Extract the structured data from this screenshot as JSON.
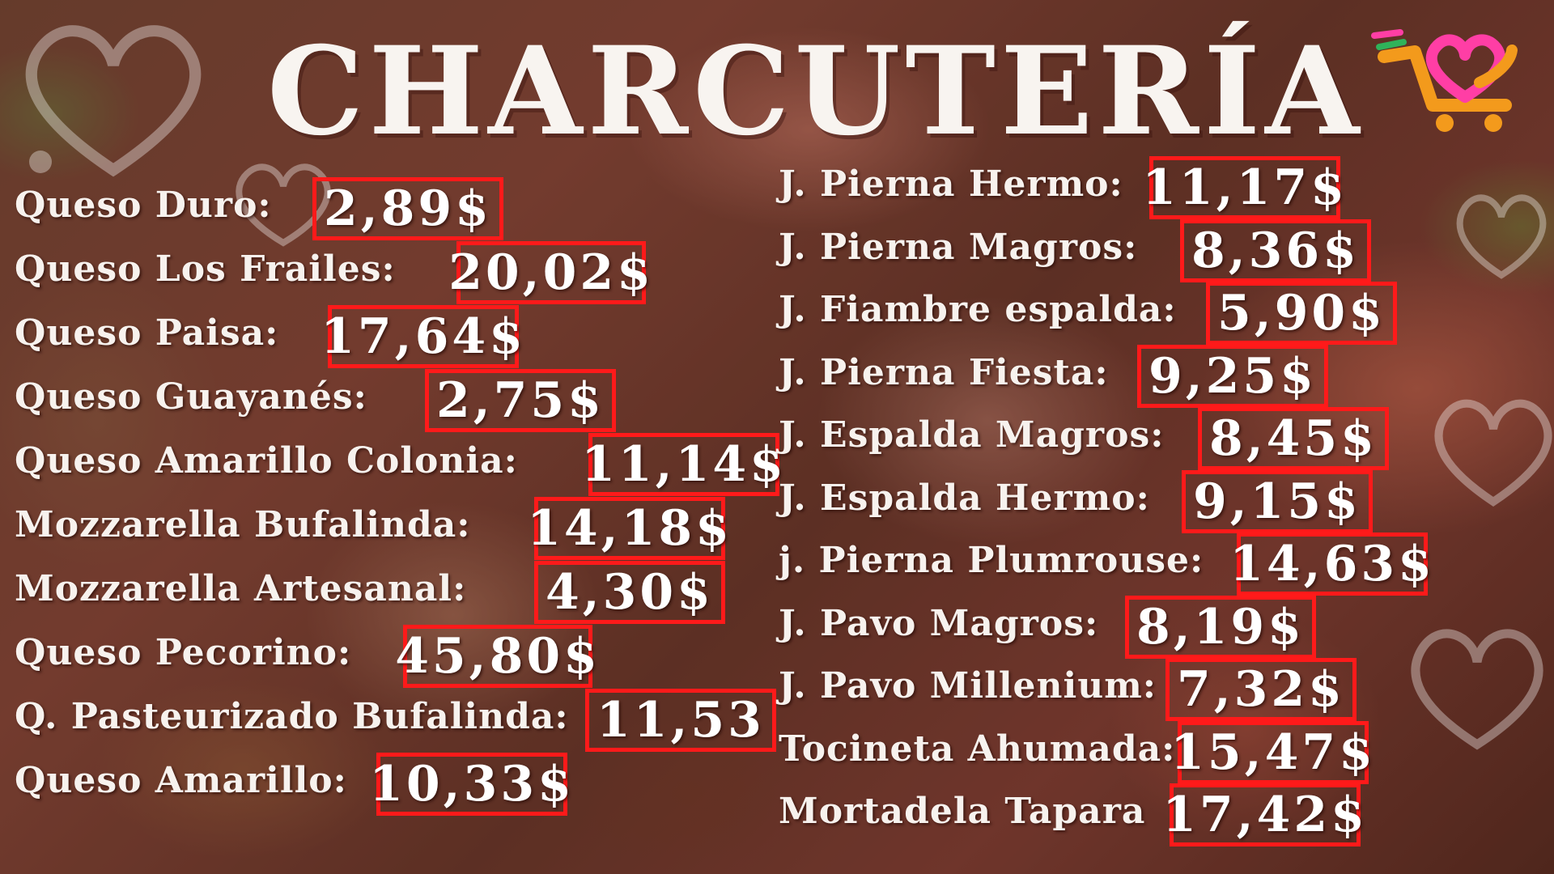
{
  "title": "CHARCUTERÍA",
  "logo": {
    "icon": "shopping-cart-heart-logo",
    "colors": [
      "#f39a1c",
      "#ff3ea5",
      "#2fb35a"
    ]
  },
  "accent_color": "#ff1a1a",
  "left_items": [
    {
      "label": "Queso Duro:",
      "price": "2,89$"
    },
    {
      "label": "Queso Los Frailes:",
      "price": "20,02$"
    },
    {
      "label": "Queso Paisa:",
      "price": "17,64$"
    },
    {
      "label": "Queso Guayanés:",
      "price": "2,75$"
    },
    {
      "label": "Queso Amarillo Colonia:",
      "price": "11,14$"
    },
    {
      "label": "Mozzarella Bufalinda:",
      "price": "14,18$"
    },
    {
      "label": "Mozzarella Artesanal:",
      "price": "4,30$"
    },
    {
      "label": "Queso Pecorino:",
      "price": "45,80$"
    },
    {
      "label": "Q. Pasteurizado Bufalinda:",
      "price": "11,53"
    },
    {
      "label": "Queso Amarillo:",
      "price": "10,33$"
    }
  ],
  "right_items": [
    {
      "label": "J. Pierna Hermo:",
      "price": "11,17$"
    },
    {
      "label": "J. Pierna Magros:",
      "price": "8,36$"
    },
    {
      "label": "J. Fiambre espalda:",
      "price": "5,90$"
    },
    {
      "label": "J. Pierna Fiesta:",
      "price": "9,25$"
    },
    {
      "label": "J. Espalda Magros:",
      "price": "8,45$"
    },
    {
      "label": "J. Espalda Hermo:",
      "price": "9,15$"
    },
    {
      "label": "j. Pierna Plumrouse:",
      "price": "14,63$"
    },
    {
      "label": "J. Pavo Magros:",
      "price": "8,19$"
    },
    {
      "label": "J. Pavo Millenium:",
      "price": "7,32$"
    },
    {
      "label": "Tocineta Ahumada:",
      "price": "15,47$"
    },
    {
      "label": "Mortadela Tapara",
      "price": "17,42$"
    }
  ]
}
